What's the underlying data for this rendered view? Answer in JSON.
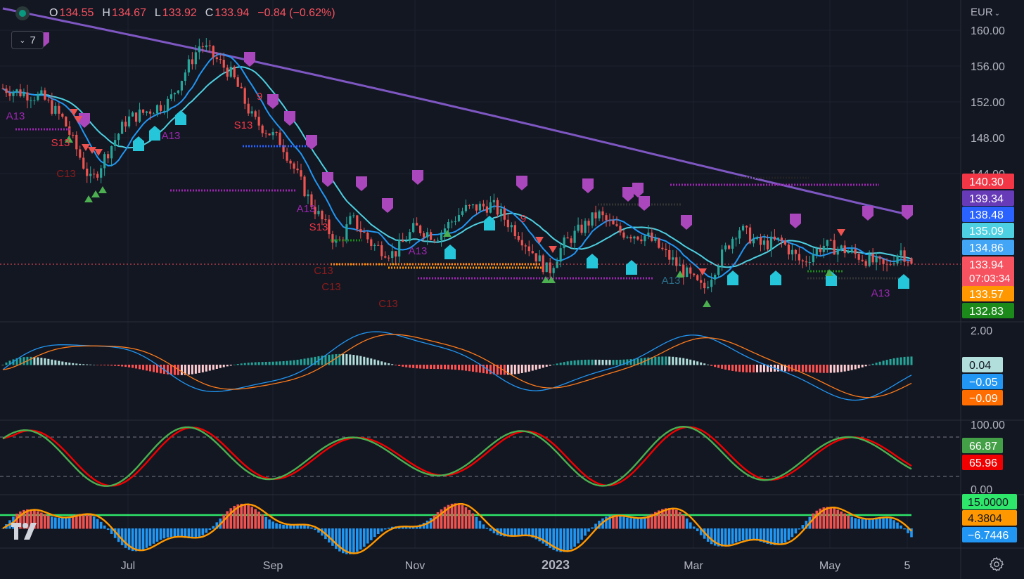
{
  "header": {
    "ohlc": [
      {
        "label": "O",
        "value": "134.55"
      },
      {
        "label": "H",
        "value": "134.67"
      },
      {
        "label": "L",
        "value": "133.92"
      },
      {
        "label": "C",
        "value": "133.94"
      }
    ],
    "change": "−0.84 (−0.62%)",
    "indicators_count": "7",
    "currency": "EUR"
  },
  "colors": {
    "background": "#131722",
    "up": "#26a69a",
    "down": "#ef5350",
    "sma_purple": "#7e57c2",
    "ema_light": "#4dd0e1",
    "ema_blue": "#2196f3",
    "macd_line": "#2196f3",
    "signal_line": "#ff7b1a",
    "stoch_k": "#4caf50",
    "stoch_d": "#f00000",
    "setup_marker": "#ab47bc",
    "buy_marker": "#26c6da"
  },
  "chart_data": [
    {
      "type": "candlestick",
      "pane": "price",
      "ylim": [
        129,
        161
      ],
      "y_ticks": [
        "160.00",
        "156.00",
        "152.00",
        "148.00",
        "144.00"
      ],
      "x_tick_labels": [
        "Jul",
        "Sep",
        "Nov",
        "2023",
        "Mar",
        "May",
        "5"
      ],
      "series": [
        {
          "name": "close",
          "x": [
            "May 2022",
            "Jun",
            "Jul",
            "Aug",
            "Sep",
            "Oct",
            "Nov",
            "Dec",
            "Jan",
            "Feb",
            "Mar",
            "Apr",
            "May"
          ],
          "values": [
            154.5,
            148,
            148,
            156,
            149,
            138,
            136,
            138,
            137,
            134,
            134,
            135,
            133.94
          ]
        }
      ],
      "last_value_labels": [
        {
          "value": "140.30",
          "color": "#f23645"
        },
        {
          "value": "139.34",
          "color": "#673ab7"
        },
        {
          "value": "138.48",
          "color": "#2962ff"
        },
        {
          "value": "135.09",
          "color": "#4dd0e1"
        },
        {
          "value": "134.86",
          "color": "#42a5f5"
        },
        {
          "value": "133.94",
          "color": "#f7525f",
          "sub": "07:03:34"
        },
        {
          "value": "133.57",
          "color": "#ff9800"
        },
        {
          "value": "132.83",
          "color": "#1b8a1b"
        }
      ],
      "annotations": [
        "A13",
        "S13",
        "C13",
        "9",
        "A13",
        "S13",
        "A13",
        "S13",
        "A13",
        "C13",
        "C13",
        "C13",
        "9",
        "A13",
        "A13"
      ]
    },
    {
      "type": "bar",
      "pane": "macd",
      "y_ticks": [
        "2.00"
      ],
      "last_value_labels": [
        {
          "value": "0.04",
          "color": "#b2dfdb",
          "text": "#131722"
        },
        {
          "value": "−0.05",
          "color": "#2196f3"
        },
        {
          "value": "−0.09",
          "color": "#ff6d00"
        }
      ]
    },
    {
      "type": "line",
      "pane": "stochastic",
      "y_ticks": [
        "100.00",
        "0.00"
      ],
      "last_value_labels": [
        {
          "value": "66.87",
          "color": "#43a047"
        },
        {
          "value": "65.96",
          "color": "#f00000"
        }
      ]
    },
    {
      "type": "bar",
      "pane": "oscillator",
      "last_value_labels": [
        {
          "value": "15.0000",
          "color": "#2ee66a",
          "text": "#131722"
        },
        {
          "value": "4.3804",
          "color": "#ff9800",
          "text": "#131722"
        },
        {
          "value": "−6.7446",
          "color": "#2196f3"
        }
      ]
    }
  ]
}
